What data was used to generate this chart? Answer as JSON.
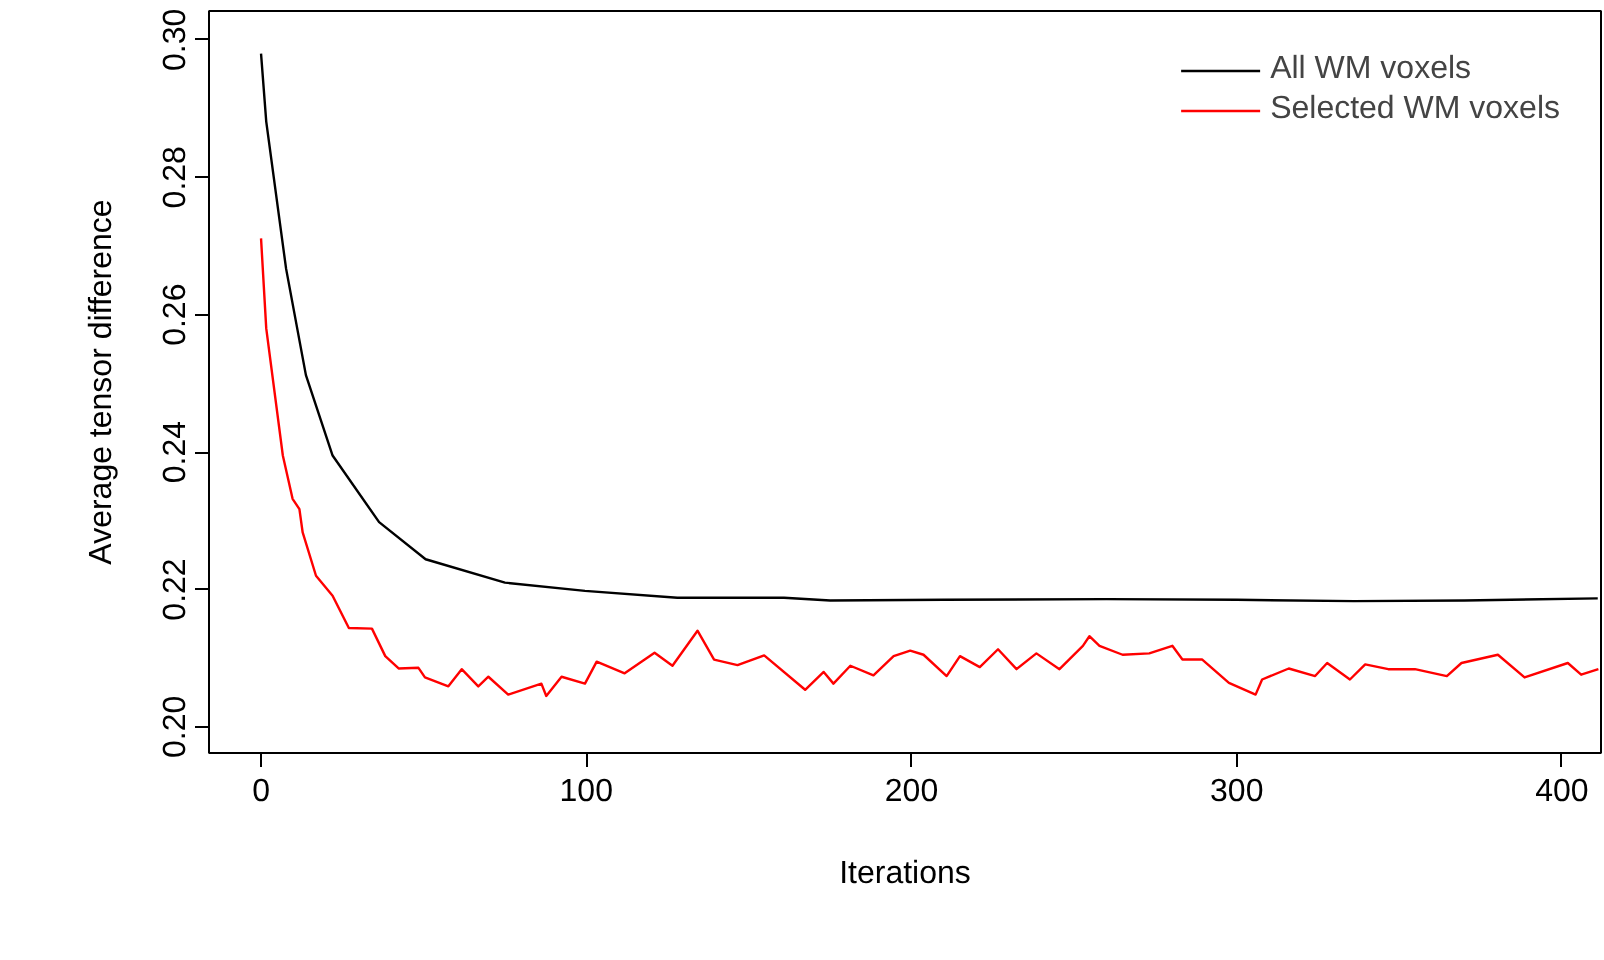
{
  "chart_data": {
    "type": "line",
    "xlabel": "Iterations",
    "ylabel": "Average tensor difference",
    "xlim": [
      -16,
      412
    ],
    "ylim": [
      0.1962,
      0.3042
    ],
    "xticks": [
      0,
      100,
      200,
      300,
      400
    ],
    "yticks": [
      {
        "value": 0.2,
        "label": "0.20"
      },
      0.22,
      0.24,
      0.26,
      0.28,
      {
        "value": 0.3,
        "label": "0.30"
      }
    ],
    "grid": false,
    "legend": "top right",
    "line_style": "solid",
    "series": [
      {
        "name": "All WM voxels",
        "color": "#000000",
        "x": [
          0,
          1.6,
          7.7,
          13.8,
          22,
          36.3,
          50.6,
          75,
          99.6,
          128,
          160.8,
          175,
          210,
          260,
          300,
          336,
          370,
          411
        ],
        "values": [
          0.298,
          0.2881,
          0.2667,
          0.2512,
          0.2395,
          0.2298,
          0.2244,
          0.221,
          0.2198,
          0.2188,
          0.2188,
          0.2184,
          0.2185,
          0.2186,
          0.2185,
          0.2183,
          0.2184,
          0.2187
        ]
      },
      {
        "name": "Selected WM voxels",
        "color": "#ff0000",
        "x": [
          0,
          1.6,
          6.7,
          9.7,
          11.8,
          12.8,
          16.9,
          22,
          27,
          34.1,
          38.2,
          42.3,
          48.4,
          50.4,
          57.6,
          61.7,
          66.8,
          69.9,
          76,
          86.2,
          87.7,
          92.4,
          99.6,
          103.2,
          111.8,
          121,
          126.5,
          134.2,
          139.3,
          146.5,
          154.7,
          167.3,
          173,
          176,
          181.2,
          188.3,
          194.5,
          199.6,
          203.7,
          210.8,
          214.9,
          221,
          226.6,
          232.3,
          238.4,
          245.5,
          252.7,
          254.7,
          257.8,
          264.9,
          273.1,
          280.2,
          283.3,
          289.4,
          297.6,
          305.8,
          307.8,
          316,
          324.1,
          327.8,
          334.8,
          339.5,
          346.6,
          354.8,
          364.6,
          369.1,
          380.3,
          388.5,
          401.8,
          405.9,
          411.2
        ],
        "values": [
          0.2711,
          0.258,
          0.2395,
          0.2332,
          0.2317,
          0.2283,
          0.222,
          0.2191,
          0.2144,
          0.2143,
          0.2103,
          0.2085,
          0.2086,
          0.2072,
          0.2059,
          0.2084,
          0.2059,
          0.2073,
          0.2047,
          0.2063,
          0.2045,
          0.2073,
          0.2063,
          0.2095,
          0.2078,
          0.2108,
          0.2089,
          0.214,
          0.2098,
          0.209,
          0.2104,
          0.2054,
          0.208,
          0.2063,
          0.2089,
          0.2075,
          0.2103,
          0.2111,
          0.2105,
          0.2074,
          0.2103,
          0.2087,
          0.2113,
          0.2084,
          0.2107,
          0.2084,
          0.2118,
          0.2132,
          0.2118,
          0.2105,
          0.2107,
          0.2118,
          0.2098,
          0.2098,
          0.2064,
          0.2047,
          0.2069,
          0.2085,
          0.2074,
          0.2093,
          0.2069,
          0.2091,
          0.2084,
          0.2084,
          0.2074,
          0.2093,
          0.2105,
          0.2072,
          0.2093,
          0.2076,
          0.2084
        ]
      }
    ]
  }
}
